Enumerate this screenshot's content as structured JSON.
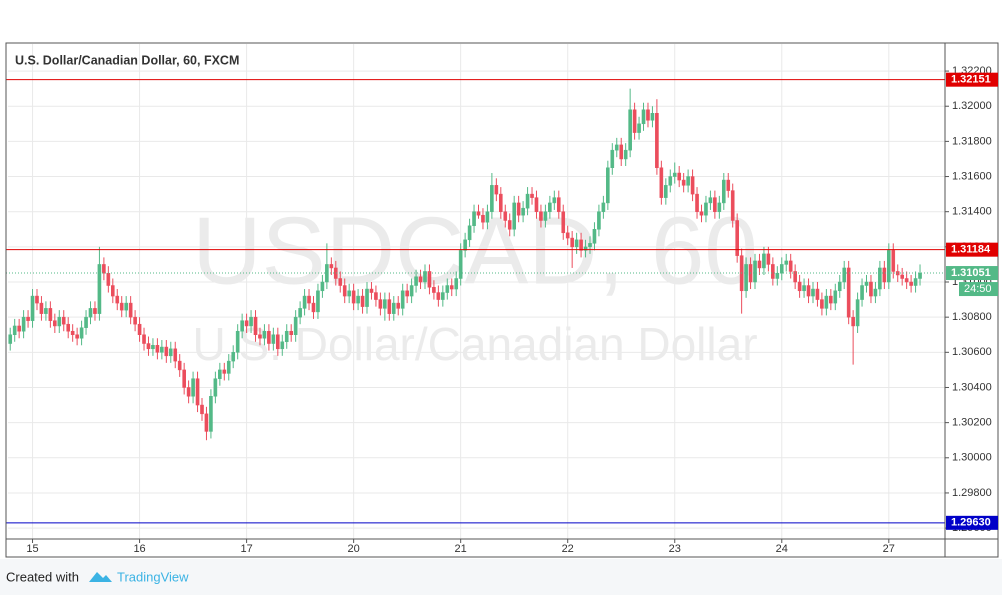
{
  "chart_data": {
    "type": "candlestick",
    "title": "U.S. Dollar/Canadian Dollar, 60, FXCM",
    "watermark": "USDCAD, 60",
    "watermark_subtitle": "U.S. Dollar/Canadian Dollar",
    "footer": {
      "prefix": "Created with",
      "brand": "TradingView"
    },
    "countdown": "24:50",
    "up_color": "#53b987",
    "down_color": "#eb4d5c",
    "grid": true,
    "xlim": [
      -0.5,
      209.6
    ],
    "xticks": [
      {
        "value": 5,
        "label": "15"
      },
      {
        "value": 29,
        "label": "16"
      },
      {
        "value": 53,
        "label": "17"
      },
      {
        "value": 77,
        "label": "20"
      },
      {
        "value": 101,
        "label": "21"
      },
      {
        "value": 125,
        "label": "22"
      },
      {
        "value": 149,
        "label": "23"
      },
      {
        "value": 173,
        "label": "24"
      },
      {
        "value": 197,
        "label": "27"
      }
    ],
    "ylim": [
      1.29538,
      1.32354
    ],
    "yticks": [
      {
        "value": 1.296,
        "label": "1.29600"
      },
      {
        "value": 1.298,
        "label": "1.29800"
      },
      {
        "value": 1.3,
        "label": "1.30000"
      },
      {
        "value": 1.302,
        "label": "1.30200"
      },
      {
        "value": 1.304,
        "label": "1.30400"
      },
      {
        "value": 1.306,
        "label": "1.30600"
      },
      {
        "value": 1.308,
        "label": "1.30800"
      },
      {
        "value": 1.31,
        "label": "1.31000"
      },
      {
        "value": 1.312,
        "label": "1.31200"
      },
      {
        "value": 1.314,
        "label": "1.31400"
      },
      {
        "value": 1.316,
        "label": "1.31600"
      },
      {
        "value": 1.318,
        "label": "1.31800"
      },
      {
        "value": 1.32,
        "label": "1.32000"
      },
      {
        "value": 1.322,
        "label": "1.32200"
      }
    ],
    "hlines": [
      {
        "value": 1.32151,
        "label": "1.32151",
        "color": "#e00000",
        "style": "solid"
      },
      {
        "value": 1.31184,
        "label": "1.31184",
        "color": "#e00000",
        "style": "solid"
      },
      {
        "value": 1.31051,
        "label": "1.31051",
        "color": "#53b987",
        "style": "dotted"
      },
      {
        "value": 1.2963,
        "label": "1.29630",
        "color": "#0000c8",
        "style": "solid"
      }
    ],
    "open": [
      1.3065,
      1.307,
      1.3075,
      1.3072,
      1.308,
      1.3078,
      1.3092,
      1.3088,
      1.3082,
      1.3085,
      1.3078,
      1.3075,
      1.308,
      1.3076,
      1.3072,
      1.307,
      1.3068,
      1.3074,
      1.308,
      1.3085,
      1.3082,
      1.311,
      1.3105,
      1.3098,
      1.3092,
      1.3088,
      1.3084,
      1.3088,
      1.308,
      1.3076,
      1.307,
      1.3065,
      1.3062,
      1.3064,
      1.306,
      1.3063,
      1.3058,
      1.3062,
      1.3055,
      1.305,
      1.304,
      1.3035,
      1.3045,
      1.303,
      1.3025,
      1.3015,
      1.3035,
      1.3045,
      1.305,
      1.3048,
      1.3055,
      1.306,
      1.3072,
      1.3078,
      1.3075,
      1.308,
      1.307,
      1.3068,
      1.3072,
      1.3065,
      1.307,
      1.3062,
      1.3066,
      1.3072,
      1.307,
      1.308,
      1.3085,
      1.3092,
      1.3088,
      1.3083,
      1.3095,
      1.31,
      1.311,
      1.3108,
      1.3102,
      1.3098,
      1.3092,
      1.3095,
      1.3088,
      1.3092,
      1.3086,
      1.3096,
      1.3094,
      1.309,
      1.3085,
      1.309,
      1.3082,
      1.3088,
      1.3085,
      1.3095,
      1.3092,
      1.3098,
      1.3103,
      1.31,
      1.3106,
      1.3097,
      1.3094,
      1.309,
      1.3094,
      1.3098,
      1.3096,
      1.3102,
      1.3118,
      1.3124,
      1.3132,
      1.314,
      1.3138,
      1.3134,
      1.314,
      1.3155,
      1.315,
      1.314,
      1.3135,
      1.313,
      1.3145,
      1.3138,
      1.3142,
      1.315,
      1.3148,
      1.314,
      1.3135,
      1.314,
      1.3145,
      1.3148,
      1.314,
      1.3128,
      1.3125,
      1.312,
      1.3124,
      1.3118,
      1.312,
      1.3122,
      1.313,
      1.314,
      1.3145,
      1.3165,
      1.3175,
      1.3178,
      1.317,
      1.3175,
      1.3198,
      1.3185,
      1.319,
      1.3198,
      1.3192,
      1.3196,
      1.3165,
      1.3148,
      1.3155,
      1.316,
      1.3162,
      1.3158,
      1.3155,
      1.316,
      1.315,
      1.314,
      1.3138,
      1.3145,
      1.3148,
      1.314,
      1.3145,
      1.3158,
      1.3152,
      1.3135,
      1.3115,
      1.3095,
      1.311,
      1.31,
      1.3112,
      1.3108,
      1.3116,
      1.311,
      1.3102,
      1.3105,
      1.311,
      1.3112,
      1.3106,
      1.31,
      1.3095,
      1.3098,
      1.3092,
      1.3096,
      1.309,
      1.3085,
      1.3092,
      1.3088,
      1.3095,
      1.31,
      1.3108,
      1.308,
      1.3075,
      1.309,
      1.3098,
      1.31,
      1.3092,
      1.3096,
      1.3108,
      1.31,
      1.3118,
      1.3106,
      1.3104,
      1.3102,
      1.31,
      1.3098,
      1.3102
    ],
    "high": [
      1.3074,
      1.3079,
      1.3079,
      1.3084,
      1.3084,
      1.3096,
      1.3096,
      1.3092,
      1.3089,
      1.3089,
      1.3082,
      1.3084,
      1.3084,
      1.308,
      1.3076,
      1.3074,
      1.3078,
      1.3084,
      1.3089,
      1.3089,
      1.312,
      1.3114,
      1.3109,
      1.3102,
      1.3096,
      1.3092,
      1.3092,
      1.3092,
      1.3084,
      1.308,
      1.3074,
      1.3069,
      1.3068,
      1.3068,
      1.3067,
      1.3067,
      1.3066,
      1.3066,
      1.3059,
      1.3054,
      1.3044,
      1.3049,
      1.3049,
      1.3034,
      1.3029,
      1.3039,
      1.3049,
      1.3054,
      1.3054,
      1.3059,
      1.3064,
      1.3076,
      1.3082,
      1.3082,
      1.3084,
      1.3084,
      1.3074,
      1.3076,
      1.3076,
      1.3074,
      1.3074,
      1.307,
      1.3076,
      1.3076,
      1.3084,
      1.3089,
      1.3096,
      1.3096,
      1.3092,
      1.3099,
      1.3104,
      1.3122,
      1.3114,
      1.3112,
      1.3106,
      1.3102,
      1.3099,
      1.3099,
      1.3096,
      1.3096,
      1.31,
      1.31,
      1.3098,
      1.3094,
      1.3094,
      1.3094,
      1.3092,
      1.3092,
      1.3099,
      1.3099,
      1.3102,
      1.3107,
      1.3107,
      1.311,
      1.311,
      1.3101,
      1.3098,
      1.3098,
      1.3102,
      1.3102,
      1.3106,
      1.3122,
      1.3128,
      1.3136,
      1.3144,
      1.3144,
      1.3142,
      1.3144,
      1.3162,
      1.3159,
      1.3154,
      1.3144,
      1.3139,
      1.3149,
      1.3149,
      1.3146,
      1.3154,
      1.3154,
      1.3152,
      1.3144,
      1.3144,
      1.3149,
      1.3152,
      1.3152,
      1.3144,
      1.3132,
      1.3129,
      1.3128,
      1.3128,
      1.3124,
      1.3126,
      1.3134,
      1.3144,
      1.3149,
      1.3169,
      1.3179,
      1.3182,
      1.3182,
      1.3179,
      1.321,
      1.3202,
      1.3194,
      1.3202,
      1.3202,
      1.32,
      1.3204,
      1.3169,
      1.3159,
      1.3164,
      1.3168,
      1.3166,
      1.3162,
      1.3164,
      1.3164,
      1.3154,
      1.3144,
      1.3149,
      1.3152,
      1.3152,
      1.3149,
      1.3162,
      1.3162,
      1.3156,
      1.3139,
      1.3119,
      1.3114,
      1.3114,
      1.3116,
      1.3116,
      1.312,
      1.312,
      1.3114,
      1.3109,
      1.3114,
      1.3116,
      1.3116,
      1.311,
      1.3104,
      1.3102,
      1.3102,
      1.31,
      1.31,
      1.3094,
      1.3096,
      1.3096,
      1.3099,
      1.3104,
      1.3112,
      1.3112,
      1.3084,
      1.3094,
      1.3102,
      1.3104,
      1.3104,
      1.31,
      1.3112,
      1.3112,
      1.3122,
      1.3122,
      1.311,
      1.3108,
      1.3106,
      1.3104,
      1.3106,
      1.311
    ],
    "low": [
      1.3061,
      1.3066,
      1.3068,
      1.3068,
      1.3074,
      1.3074,
      1.3084,
      1.3078,
      1.3078,
      1.3074,
      1.3071,
      1.3071,
      1.3072,
      1.3068,
      1.3066,
      1.3064,
      1.3064,
      1.307,
      1.3076,
      1.3078,
      1.3078,
      1.3101,
      1.3094,
      1.3088,
      1.3084,
      1.308,
      1.308,
      1.3076,
      1.3072,
      1.3066,
      1.3061,
      1.3058,
      1.3058,
      1.3056,
      1.3056,
      1.3054,
      1.3054,
      1.3051,
      1.3046,
      1.3036,
      1.3031,
      1.3031,
      1.3026,
      1.3021,
      1.301,
      1.3011,
      1.3031,
      1.3041,
      1.3044,
      1.3044,
      1.3051,
      1.3056,
      1.3068,
      1.3071,
      1.3071,
      1.3066,
      1.3064,
      1.3064,
      1.3061,
      1.3061,
      1.3058,
      1.3058,
      1.3062,
      1.3066,
      1.3066,
      1.3076,
      1.3081,
      1.3084,
      1.3079,
      1.3079,
      1.3091,
      1.3096,
      1.3104,
      1.3098,
      1.3094,
      1.3088,
      1.3088,
      1.3084,
      1.3084,
      1.3082,
      1.3082,
      1.309,
      1.3086,
      1.3081,
      1.3078,
      1.3078,
      1.3078,
      1.3081,
      1.3081,
      1.3088,
      1.3088,
      1.3094,
      1.3096,
      1.3096,
      1.3093,
      1.309,
      1.3086,
      1.3086,
      1.309,
      1.3092,
      1.3092,
      1.3098,
      1.3114,
      1.312,
      1.3128,
      1.3136,
      1.313,
      1.313,
      1.3136,
      1.3146,
      1.3136,
      1.3131,
      1.3126,
      1.3126,
      1.3134,
      1.3134,
      1.3138,
      1.3144,
      1.3136,
      1.3131,
      1.3131,
      1.3136,
      1.3141,
      1.3136,
      1.3124,
      1.3121,
      1.3108,
      1.3116,
      1.3114,
      1.3114,
      1.3116,
      1.3118,
      1.3126,
      1.3136,
      1.3141,
      1.3161,
      1.3171,
      1.3166,
      1.3166,
      1.3171,
      1.3181,
      1.3181,
      1.3186,
      1.3188,
      1.3188,
      1.3161,
      1.3144,
      1.3144,
      1.3151,
      1.3156,
      1.3154,
      1.3151,
      1.3151,
      1.3146,
      1.3136,
      1.3134,
      1.3134,
      1.3141,
      1.3136,
      1.3136,
      1.3141,
      1.3148,
      1.3131,
      1.3111,
      1.3082,
      1.3091,
      1.3096,
      1.3096,
      1.3104,
      1.3104,
      1.3106,
      1.3098,
      1.3098,
      1.3101,
      1.3106,
      1.3102,
      1.3096,
      1.3091,
      1.3091,
      1.3088,
      1.3088,
      1.3086,
      1.3081,
      1.3081,
      1.3084,
      1.3084,
      1.3091,
      1.3096,
      1.3076,
      1.3053,
      1.3071,
      1.3086,
      1.3094,
      1.3088,
      1.3088,
      1.3092,
      1.3096,
      1.3096,
      1.3102,
      1.31,
      1.3098,
      1.3096,
      1.3094,
      1.3094,
      1.3098
    ],
    "close": [
      1.307,
      1.3075,
      1.3072,
      1.308,
      1.3078,
      1.3092,
      1.3088,
      1.3082,
      1.3085,
      1.3078,
      1.3075,
      1.308,
      1.3076,
      1.3072,
      1.307,
      1.3068,
      1.3074,
      1.308,
      1.3085,
      1.3082,
      1.311,
      1.3105,
      1.3098,
      1.3092,
      1.3088,
      1.3084,
      1.3088,
      1.308,
      1.3076,
      1.307,
      1.3065,
      1.3062,
      1.3064,
      1.306,
      1.3063,
      1.3058,
      1.3062,
      1.3055,
      1.305,
      1.304,
      1.3035,
      1.3045,
      1.303,
      1.3025,
      1.3015,
      1.3035,
      1.3045,
      1.305,
      1.3048,
      1.3055,
      1.306,
      1.3072,
      1.3078,
      1.3075,
      1.308,
      1.307,
      1.3068,
      1.3072,
      1.3065,
      1.307,
      1.3062,
      1.3066,
      1.3072,
      1.307,
      1.308,
      1.3085,
      1.3092,
      1.3088,
      1.3083,
      1.3095,
      1.31,
      1.311,
      1.3108,
      1.3102,
      1.3098,
      1.3092,
      1.3095,
      1.3088,
      1.3092,
      1.3086,
      1.3096,
      1.3094,
      1.309,
      1.3085,
      1.309,
      1.3082,
      1.3088,
      1.3085,
      1.3095,
      1.3092,
      1.3098,
      1.3103,
      1.31,
      1.3106,
      1.3097,
      1.3094,
      1.309,
      1.3094,
      1.3098,
      1.3096,
      1.3102,
      1.3118,
      1.3124,
      1.3132,
      1.314,
      1.3138,
      1.3134,
      1.314,
      1.3155,
      1.315,
      1.314,
      1.3135,
      1.313,
      1.3145,
      1.3138,
      1.3142,
      1.315,
      1.3148,
      1.314,
      1.3135,
      1.314,
      1.3145,
      1.3148,
      1.314,
      1.3128,
      1.3125,
      1.312,
      1.3124,
      1.3118,
      1.312,
      1.3122,
      1.313,
      1.314,
      1.3145,
      1.3165,
      1.3175,
      1.3178,
      1.317,
      1.3175,
      1.3198,
      1.3185,
      1.319,
      1.3198,
      1.3192,
      1.3196,
      1.3165,
      1.3148,
      1.3155,
      1.316,
      1.3162,
      1.3158,
      1.3155,
      1.316,
      1.315,
      1.314,
      1.3138,
      1.3145,
      1.3148,
      1.314,
      1.3145,
      1.3158,
      1.3152,
      1.3135,
      1.3115,
      1.3095,
      1.311,
      1.31,
      1.3112,
      1.3108,
      1.3116,
      1.311,
      1.3102,
      1.3105,
      1.311,
      1.3112,
      1.3106,
      1.31,
      1.3095,
      1.3098,
      1.3092,
      1.3096,
      1.309,
      1.3085,
      1.3092,
      1.3088,
      1.3095,
      1.31,
      1.3108,
      1.308,
      1.3075,
      1.309,
      1.3098,
      1.31,
      1.3092,
      1.3096,
      1.3108,
      1.31,
      1.3118,
      1.3106,
      1.3104,
      1.3102,
      1.31,
      1.3098,
      1.3102,
      1.31051
    ]
  }
}
